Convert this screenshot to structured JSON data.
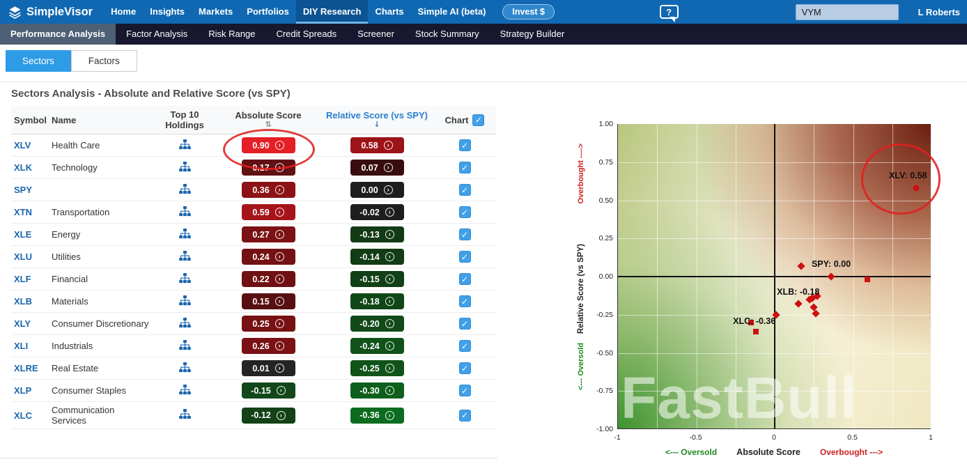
{
  "topnav": {
    "brand": "SimpleVisor",
    "items": [
      "Home",
      "Insights",
      "Markets",
      "Portfolios",
      "DIY Research",
      "Charts",
      "Simple AI (beta)"
    ],
    "active_item": "DIY Research",
    "invest_label": "Invest $",
    "search_value": "VYM",
    "user": "L Roberts"
  },
  "subnav": {
    "items": [
      "Performance Analysis",
      "Factor Analysis",
      "Risk Range",
      "Credit Spreads",
      "Screener",
      "Stock Summary",
      "Strategy Builder"
    ],
    "active_item": "Performance Analysis"
  },
  "tabs": {
    "sectors": "Sectors",
    "factors": "Factors",
    "active": "Sectors"
  },
  "heading": "Sectors Analysis - Absolute and Relative Score (vs SPY)",
  "icons": {
    "check": "✓",
    "sort_both": "⇅",
    "sort_desc": "↓",
    "badge_arrow": "›",
    "help": "?"
  },
  "colors": {
    "topnav_blue": "#1068b2",
    "subnav_dark": "#17172f",
    "accent_blue": "#2e9be6",
    "checkbox_blue": "#41a0e8",
    "symbol_link_blue": "#1a66b0",
    "annotation_red": "#e02020",
    "marker_red": "#cc1111"
  },
  "table": {
    "headers": {
      "symbol": "Symbol",
      "name": "Name",
      "holdings": "Top 10 Holdings",
      "absolute": "Absolute Score",
      "relative": "Relative Score (vs SPY)",
      "chart": "Chart"
    },
    "rows": [
      {
        "symbol": "XLV",
        "name": "Health Care",
        "abs": "0.90",
        "abs_color": "#e41f25",
        "rel": "0.58",
        "rel_color": "#9d1317",
        "checked": true
      },
      {
        "symbol": "XLK",
        "name": "Technology",
        "abs": "0.17",
        "abs_color": "#611013",
        "rel": "0.07",
        "rel_color": "#380d0f",
        "checked": true
      },
      {
        "symbol": "SPY",
        "name": "",
        "abs": "0.36",
        "abs_color": "#8c1216",
        "rel": "0.00",
        "rel_color": "#1e1e1e",
        "checked": true
      },
      {
        "symbol": "XTN",
        "name": "Transportation",
        "abs": "0.59",
        "abs_color": "#a6141a",
        "rel": "-0.02",
        "rel_color": "#1d1d1d",
        "checked": true
      },
      {
        "symbol": "XLE",
        "name": "Energy",
        "abs": "0.27",
        "abs_color": "#7c1115",
        "rel": "-0.13",
        "rel_color": "#123a14",
        "checked": true
      },
      {
        "symbol": "XLU",
        "name": "Utilities",
        "abs": "0.24",
        "abs_color": "#741114",
        "rel": "-0.14",
        "rel_color": "#123c15",
        "checked": true
      },
      {
        "symbol": "XLF",
        "name": "Financial",
        "abs": "0.22",
        "abs_color": "#6f1013",
        "rel": "-0.15",
        "rel_color": "#124016",
        "checked": true
      },
      {
        "symbol": "XLB",
        "name": "Materials",
        "abs": "0.15",
        "abs_color": "#570f11",
        "rel": "-0.18",
        "rel_color": "#114617",
        "checked": true
      },
      {
        "symbol": "XLY",
        "name": "Consumer Discretionary",
        "abs": "0.25",
        "abs_color": "#771114",
        "rel": "-0.20",
        "rel_color": "#114a18",
        "checked": true
      },
      {
        "symbol": "XLI",
        "name": "Industrials",
        "abs": "0.26",
        "abs_color": "#791115",
        "rel": "-0.24",
        "rel_color": "#10521a",
        "checked": true
      },
      {
        "symbol": "XLRE",
        "name": "Real Estate",
        "abs": "0.01",
        "abs_color": "#242424",
        "rel": "-0.25",
        "rel_color": "#105419",
        "checked": true
      },
      {
        "symbol": "XLP",
        "name": "Consumer Staples",
        "abs": "-0.15",
        "abs_color": "#12471a",
        "rel": "-0.30",
        "rel_color": "#0e5e1c",
        "checked": true
      },
      {
        "symbol": "XLC",
        "name": "Communication Services",
        "abs": "-0.12",
        "abs_color": "#134217",
        "rel": "-0.36",
        "rel_color": "#0b6b1f",
        "checked": true
      }
    ]
  },
  "chart_data": {
    "type": "scatter",
    "xlabel": "Absolute Score",
    "ylabel": "Relative Score (vs SPY)",
    "x_oversold": "<--- Oversold",
    "x_overbought": "Overbought --->",
    "y_overbought": "Overbought ---->",
    "y_oversold": "<--- Oversold",
    "xlim": [
      -1,
      1
    ],
    "ylim": [
      -1,
      1
    ],
    "grid_step": 0.25,
    "x_ticks": [
      "-1",
      "-0.5",
      "0",
      "0.5",
      "1"
    ],
    "y_ticks": [
      "1.00",
      "0.75",
      "0.50",
      "0.25",
      "0.00",
      "-0.25",
      "-0.50",
      "-0.75",
      "-1.00"
    ],
    "marker_color": "#cc1111",
    "points": [
      {
        "label": "XLV",
        "x": 0.9,
        "y": 0.58,
        "shape": "circle"
      },
      {
        "label": "XLK",
        "x": 0.17,
        "y": 0.07,
        "shape": "diamond"
      },
      {
        "label": "SPY",
        "x": 0.36,
        "y": 0.0,
        "shape": "diamond"
      },
      {
        "label": "XTN",
        "x": 0.59,
        "y": -0.02,
        "shape": "square"
      },
      {
        "label": "XLE",
        "x": 0.27,
        "y": -0.13,
        "shape": "diamond"
      },
      {
        "label": "XLU",
        "x": 0.24,
        "y": -0.14,
        "shape": "diamond"
      },
      {
        "label": "XLF",
        "x": 0.22,
        "y": -0.15,
        "shape": "diamond"
      },
      {
        "label": "XLB",
        "x": 0.15,
        "y": -0.18,
        "shape": "diamond"
      },
      {
        "label": "XLY",
        "x": 0.25,
        "y": -0.2,
        "shape": "diamond"
      },
      {
        "label": "XLI",
        "x": 0.26,
        "y": -0.24,
        "shape": "diamond"
      },
      {
        "label": "XLRE",
        "x": 0.01,
        "y": -0.25,
        "shape": "diamond"
      },
      {
        "label": "XLP",
        "x": -0.15,
        "y": -0.3,
        "shape": "square"
      },
      {
        "label": "XLC",
        "x": -0.12,
        "y": -0.36,
        "shape": "square"
      }
    ],
    "labels": [
      {
        "text": "XLV: 0.58",
        "x": 0.85,
        "y": 0.66
      },
      {
        "text": "SPY: 0.00",
        "x": 0.36,
        "y": 0.08
      },
      {
        "text": "XLB: -0.18",
        "x": 0.15,
        "y": -0.1
      },
      {
        "text": "XLC: -0.36",
        "x": -0.13,
        "y": -0.29
      }
    ],
    "watermark": "FastBull",
    "circled_point": "XLV"
  }
}
